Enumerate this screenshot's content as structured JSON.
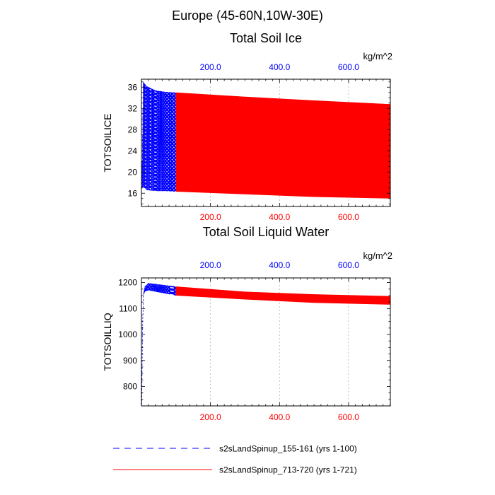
{
  "figure_title": "Europe (45-60N,10W-30E)",
  "legend": [
    {
      "label": "s2sLandSpinup_155-161 (yrs 1-100)",
      "color": "#0000ff",
      "style": "dashed"
    },
    {
      "label": "s2sLandSpinup_713-720 (yrs 1-721)",
      "color": "#ff0000",
      "style": "solid"
    }
  ],
  "chart_data": [
    {
      "type": "line",
      "title": "Total Soil Ice",
      "ylabel": "TOTSOILICE",
      "units": "kg/m^2",
      "xlim": [
        0,
        721
      ],
      "ylim": [
        13.5,
        37.5
      ],
      "yticks": [
        16,
        20,
        24,
        28,
        32,
        36
      ],
      "bottom_xticks": [
        200,
        400,
        600
      ],
      "bottom_xtick_labels": [
        "200.0",
        "400.0",
        "600.0"
      ],
      "bottom_tick_color": "#ff0000",
      "top_xticks": [
        200,
        400,
        600
      ],
      "top_xtick_labels": [
        "200.0",
        "400.0",
        "600.0"
      ],
      "top_tick_color": "#0000ff",
      "series": [
        {
          "name": "s2sLandSpinup_155-161 (yrs 1-100)",
          "color": "#0000ff",
          "style": "dashed",
          "x_range": [
            1,
            100
          ],
          "cycle": "annual",
          "envelope": {
            "x": [
              1,
              5,
              15,
              40,
              70,
              100
            ],
            "max": [
              17,
              37,
              36.2,
              35.4,
              35.1,
              35.0
            ],
            "min": [
              17,
              17.2,
              16.6,
              16.4,
              16.4,
              16.3
            ]
          }
        },
        {
          "name": "s2sLandSpinup_713-720 (yrs 1-721)",
          "color": "#ff0000",
          "style": "solid",
          "x_range": [
            100,
            721
          ],
          "cycle": "annual",
          "envelope": {
            "x": [
              100,
              300,
              500,
              721
            ],
            "max": [
              35.0,
              34.2,
              33.5,
              32.8
            ],
            "min": [
              16.3,
              15.8,
              15.3,
              15.0
            ]
          }
        }
      ]
    },
    {
      "type": "line",
      "title": "Total Soil Liquid Water",
      "ylabel": "TOTSOILLIQ",
      "units": "kg/m^2",
      "xlim": [
        0,
        721
      ],
      "ylim": [
        725,
        1218
      ],
      "yticks": [
        800,
        900,
        1000,
        1100,
        1200
      ],
      "bottom_xticks": [
        200,
        400,
        600
      ],
      "bottom_xtick_labels": [
        "200.0",
        "400.0",
        "600.0"
      ],
      "bottom_tick_color": "#ff0000",
      "top_xticks": [
        200,
        400,
        600
      ],
      "top_xtick_labels": [
        "200.0",
        "400.0",
        "600.0"
      ],
      "top_tick_color": "#0000ff",
      "series": [
        {
          "name": "s2sLandSpinup_155-161 (yrs 1-100)",
          "color": "#0000ff",
          "style": "dashed",
          "x_range": [
            1,
            100
          ],
          "cycle": "annual",
          "envelope": {
            "x": [
              1,
              3,
              6,
              10,
              20,
              40,
              100
            ],
            "max": [
              730,
              1030,
              1160,
              1185,
              1198,
              1195,
              1185
            ],
            "min": [
              730,
              1000,
              1150,
              1165,
              1170,
              1165,
              1150
            ]
          }
        },
        {
          "name": "s2sLandSpinup_713-720 (yrs 1-721)",
          "color": "#ff0000",
          "style": "solid",
          "x_range": [
            100,
            721
          ],
          "cycle": "annual",
          "envelope": {
            "x": [
              100,
              300,
              500,
              721
            ],
            "max": [
              1185,
              1165,
              1155,
              1148
            ],
            "min": [
              1150,
              1135,
              1122,
              1115
            ]
          }
        }
      ]
    }
  ]
}
